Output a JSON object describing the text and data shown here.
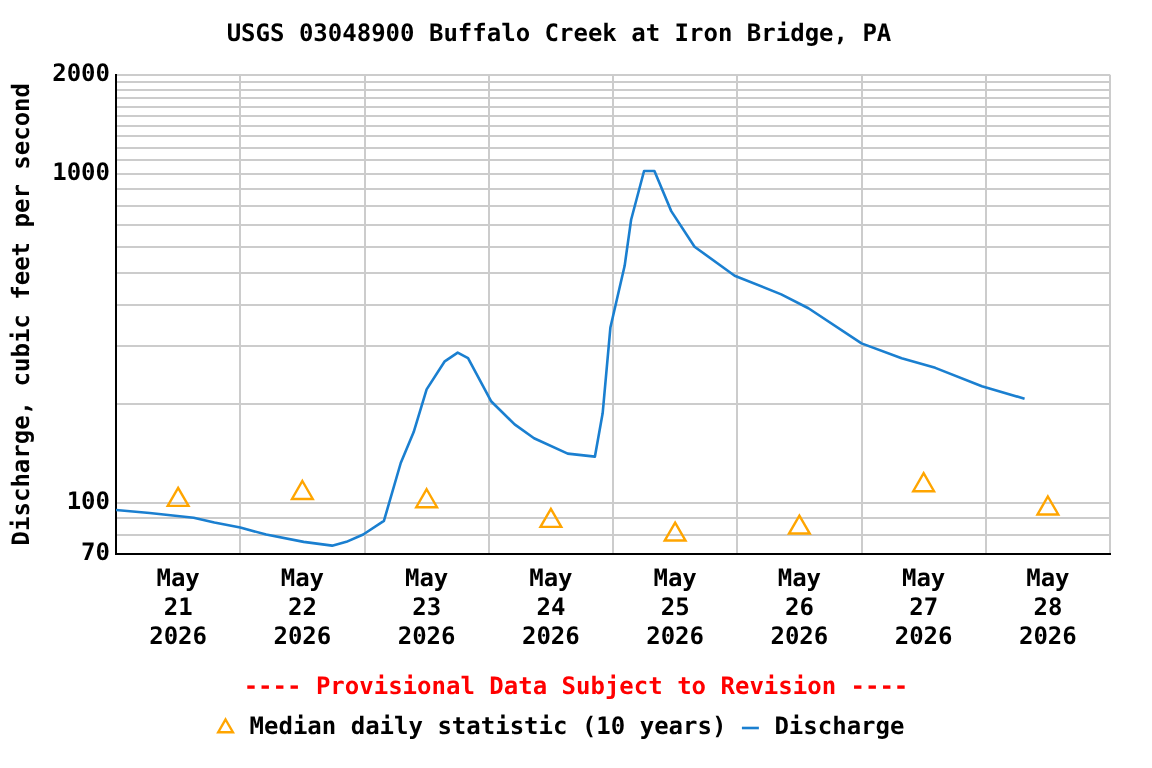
{
  "chart_data": {
    "type": "line",
    "title": "USGS 03048900 Buffalo Creek at Iron Bridge, PA",
    "ylabel": "Discharge, cubic feet per second",
    "annotations": [
      "---- Provisional Data Subject to Revision ----"
    ],
    "log": "y",
    "grid": true,
    "legend": "bottom",
    "xlim": [
      "2026-05-21T00:00",
      "2026-05-29T00:00"
    ],
    "xticks": [
      {
        "value": "2026-05-21T00:00",
        "label": null
      },
      {
        "value": "2026-05-21T12:00",
        "label": "May\n21\n2026"
      },
      {
        "value": "2026-05-22T00:00",
        "label": null
      },
      {
        "value": "2026-05-22T12:00",
        "label": "May\n22\n2026"
      },
      {
        "value": "2026-05-23T00:00",
        "label": null
      },
      {
        "value": "2026-05-23T12:00",
        "label": "May\n23\n2026"
      },
      {
        "value": "2026-05-24T00:00",
        "label": null
      },
      {
        "value": "2026-05-24T12:00",
        "label": "May\n24\n2026"
      },
      {
        "value": "2026-05-25T00:00",
        "label": null
      },
      {
        "value": "2026-05-25T12:00",
        "label": "May\n25\n2026"
      },
      {
        "value": "2026-05-26T00:00",
        "label": null
      },
      {
        "value": "2026-05-26T12:00",
        "label": "May\n26\n2026"
      },
      {
        "value": "2026-05-27T00:00",
        "label": null
      },
      {
        "value": "2026-05-27T12:00",
        "label": "May\n27\n2026"
      },
      {
        "value": "2026-05-28T00:00",
        "label": null
      },
      {
        "value": "2026-05-28T12:00",
        "label": "May\n28\n2026"
      },
      {
        "value": "2026-05-29T00:00",
        "label": null
      }
    ],
    "ylim": [
      70,
      2000
    ],
    "yticks": [
      70,
      {
        "value": 80,
        "label": null
      },
      {
        "value": 90,
        "label": null
      },
      100,
      {
        "value": 200,
        "label": null
      },
      {
        "value": 300,
        "label": null
      },
      {
        "value": 400,
        "label": null
      },
      {
        "value": 500,
        "label": null
      },
      {
        "value": 600,
        "label": null
      },
      {
        "value": 700,
        "label": null
      },
      {
        "value": 800,
        "label": null
      },
      {
        "value": 900,
        "label": null
      },
      1000,
      {
        "value": 1100,
        "label": null
      },
      {
        "value": 1200,
        "label": null
      },
      {
        "value": 1300,
        "label": null
      },
      {
        "value": 1400,
        "label": null
      },
      {
        "value": 1500,
        "label": null
      },
      {
        "value": 1600,
        "label": null
      },
      {
        "value": 1700,
        "label": null
      },
      {
        "value": 1800,
        "label": null
      },
      {
        "value": 1900,
        "label": null
      },
      2000
    ],
    "series": [
      {
        "name": "Median daily statistic (10 years)",
        "type": "scatter",
        "marker": "triangle",
        "color": "#ffa500",
        "x": [
          "2026-05-21T12:00",
          "2026-05-22T12:00",
          "2026-05-23T12:00",
          "2026-05-24T12:00",
          "2026-05-25T12:00",
          "2026-05-26T12:00",
          "2026-05-27T12:00",
          "2026-05-28T12:00"
        ],
        "values": [
          102,
          107,
          101,
          88,
          80,
          84,
          113,
          96
        ]
      },
      {
        "name": "Discharge",
        "marker": "none",
        "color": "#1a7fd0",
        "x": [
          "2026-05-21T00:00",
          "2026-05-21T06:30",
          "2026-05-21T15:00",
          "2026-05-21T19:00",
          "2026-05-22T00:00",
          "2026-05-22T05:00",
          "2026-05-22T12:15",
          "2026-05-22T17:45",
          "2026-05-22T20:30",
          "2026-05-22T23:45",
          "2026-05-23T03:45",
          "2026-05-23T07:00",
          "2026-05-23T09:30",
          "2026-05-23T12:00",
          "2026-05-23T15:30",
          "2026-05-23T18:00",
          "2026-05-23T20:00",
          "2026-05-24T00:30",
          "2026-05-24T05:00",
          "2026-05-24T08:45",
          "2026-05-24T15:15",
          "2026-05-24T20:30",
          "2026-05-24T22:00",
          "2026-05-24T23:30",
          "2026-05-25T02:15",
          "2026-05-25T03:30",
          "2026-05-25T06:00",
          "2026-05-25T08:00",
          "2026-05-25T11:15",
          "2026-05-25T15:45",
          "2026-05-25T23:30",
          "2026-05-26T08:30",
          "2026-05-26T13:45",
          "2026-05-27T00:00",
          "2026-05-27T07:45",
          "2026-05-27T14:15",
          "2026-05-27T23:15",
          "2026-05-28T07:30"
        ],
        "values": [
          95,
          93,
          90,
          87,
          84,
          80,
          76,
          74,
          76,
          80,
          88,
          132,
          164,
          221,
          269,
          286,
          275,
          203,
          173,
          157,
          141,
          138,
          187,
          341,
          525,
          725,
          1020,
          1020,
          770,
          600,
          490,
          430,
          390,
          305,
          275,
          257,
          226,
          207
        ]
      }
    ]
  }
}
